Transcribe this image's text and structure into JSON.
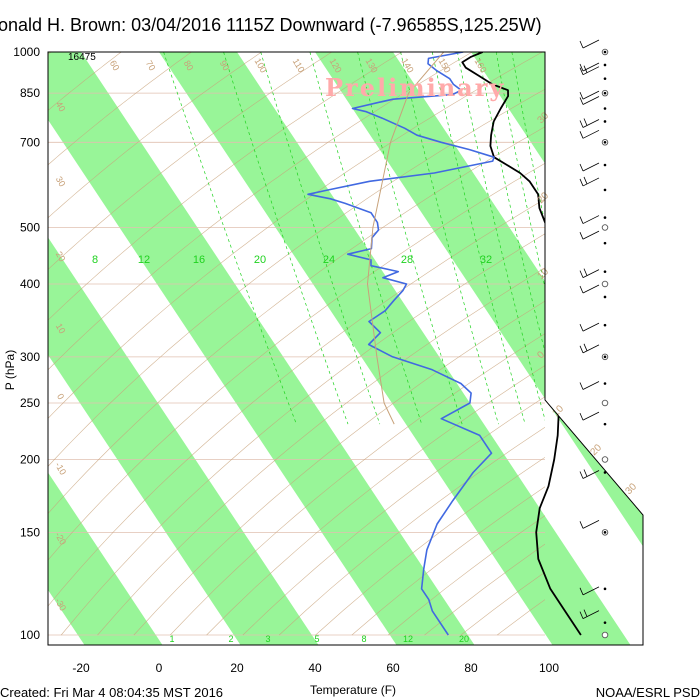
{
  "title": "onald H. Brown: 03/04/2016 1115Z Downward (-7.96585S,125.25W)",
  "watermark": "Preliminary",
  "footer_left": "Created: Fri Mar  4 08:04:35 MST 2016",
  "footer_right": "NOAA/ESRL PSD",
  "colors": {
    "temperature": "#000000",
    "dewpoint": "#4169e1",
    "isotherm_band": "#98f598",
    "mixing_ratio": "#1fd21f",
    "dry_adiabat": "#c8a27a",
    "grid": "#e0c0b0",
    "parcel": "#c8a27a"
  },
  "chart_data": {
    "type": "line",
    "diagram": "skew-T log-P",
    "xlabel": "Temperature (F)",
    "ylabel": "P (hPa)",
    "x_ticks": [
      -20,
      0,
      20,
      40,
      60,
      80,
      100
    ],
    "y_ticks": [
      100,
      150,
      200,
      250,
      300,
      400,
      500,
      700,
      850,
      1000
    ],
    "ylim": [
      1000,
      100
    ],
    "top_height_label": "16475",
    "mixing_ratio_labels_upper": [
      "8",
      "12",
      "16",
      "20",
      "24",
      "28",
      "32"
    ],
    "mixing_ratio_labels_lower": [
      "1",
      "2",
      "3",
      "5",
      "8",
      "12",
      "20"
    ],
    "isotherm_labels_right": [
      "30",
      "20",
      "10",
      "0",
      "10",
      "20",
      "30"
    ],
    "dry_adiabat_labels": [
      "60",
      "70",
      "80",
      "90",
      "100",
      "110",
      "120",
      "130",
      "140",
      "150",
      "160"
    ],
    "dry_adiabat_left_labels": [
      "40",
      "30",
      "20",
      "10",
      "0",
      "-10",
      "-20",
      "-30"
    ],
    "series": [
      {
        "name": "Temperature",
        "points": [
          [
            1000,
            83
          ],
          [
            980,
            79
          ],
          [
            960,
            76
          ],
          [
            940,
            76
          ],
          [
            910,
            78
          ],
          [
            880,
            80
          ],
          [
            860,
            83
          ],
          [
            840,
            82
          ],
          [
            800,
            78
          ],
          [
            760,
            74
          ],
          [
            720,
            71
          ],
          [
            690,
            69
          ],
          [
            660,
            68
          ],
          [
            640,
            70
          ],
          [
            620,
            72
          ],
          [
            600,
            73
          ],
          [
            570,
            73
          ],
          [
            540,
            71
          ],
          [
            510,
            70
          ],
          [
            480,
            69
          ],
          [
            450,
            67
          ],
          [
            430,
            63
          ],
          [
            410,
            61
          ],
          [
            390,
            59
          ],
          [
            370,
            58
          ],
          [
            345,
            56
          ],
          [
            320,
            55
          ],
          [
            300,
            53
          ],
          [
            280,
            50
          ],
          [
            260,
            46
          ],
          [
            240,
            41
          ],
          [
            220,
            37
          ],
          [
            200,
            32
          ],
          [
            180,
            26
          ],
          [
            165,
            20
          ],
          [
            150,
            15
          ],
          [
            135,
            11
          ],
          [
            120,
            9
          ],
          [
            110,
            9
          ],
          [
            100,
            9
          ]
        ]
      },
      {
        "name": "Dewpoint",
        "points": [
          [
            1000,
            78
          ],
          [
            975,
            68
          ],
          [
            955,
            67
          ],
          [
            930,
            68
          ],
          [
            900,
            70
          ],
          [
            880,
            70
          ],
          [
            860,
            71
          ],
          [
            845,
            68
          ],
          [
            830,
            52
          ],
          [
            820,
            48
          ],
          [
            800,
            40
          ],
          [
            790,
            43
          ],
          [
            770,
            46
          ],
          [
            740,
            50
          ],
          [
            720,
            52
          ],
          [
            700,
            57
          ],
          [
            680,
            63
          ],
          [
            660,
            68
          ],
          [
            650,
            67
          ],
          [
            620,
            50
          ],
          [
            600,
            32
          ],
          [
            580,
            20
          ],
          [
            570,
            14
          ],
          [
            560,
            19
          ],
          [
            550,
            22
          ],
          [
            530,
            27
          ],
          [
            510,
            27
          ],
          [
            495,
            26
          ],
          [
            480,
            23
          ],
          [
            460,
            21
          ],
          [
            450,
            14
          ],
          [
            440,
            19
          ],
          [
            430,
            18
          ],
          [
            420,
            24
          ],
          [
            410,
            19
          ],
          [
            400,
            24
          ],
          [
            390,
            22
          ],
          [
            375,
            18
          ],
          [
            360,
            14
          ],
          [
            345,
            8
          ],
          [
            330,
            9
          ],
          [
            315,
            4
          ],
          [
            300,
            8
          ],
          [
            285,
            16
          ],
          [
            270,
            21
          ],
          [
            260,
            22
          ],
          [
            250,
            20
          ],
          [
            235,
            10
          ],
          [
            220,
            17
          ],
          [
            205,
            17
          ],
          [
            190,
            9
          ],
          [
            170,
            -1
          ],
          [
            155,
            -9
          ],
          [
            140,
            -16
          ],
          [
            130,
            -20
          ],
          [
            120,
            -24
          ],
          [
            115,
            -24
          ],
          [
            110,
            -25
          ],
          [
            100,
            -25
          ]
        ]
      },
      {
        "name": "Parcel",
        "points": [
          [
            1000,
            73
          ],
          [
            850,
            57
          ],
          [
            700,
            44
          ],
          [
            500,
            25
          ],
          [
            400,
            14
          ],
          [
            300,
            4
          ],
          [
            250,
            -2
          ],
          [
            230,
            -3
          ]
        ]
      }
    ],
    "wind_barb_pressures": [
      105,
      120,
      150,
      190,
      230,
      270,
      300,
      340,
      380,
      420,
      470,
      520,
      580,
      640,
      700,
      760,
      800,
      850,
      900,
      950,
      1000
    ]
  }
}
